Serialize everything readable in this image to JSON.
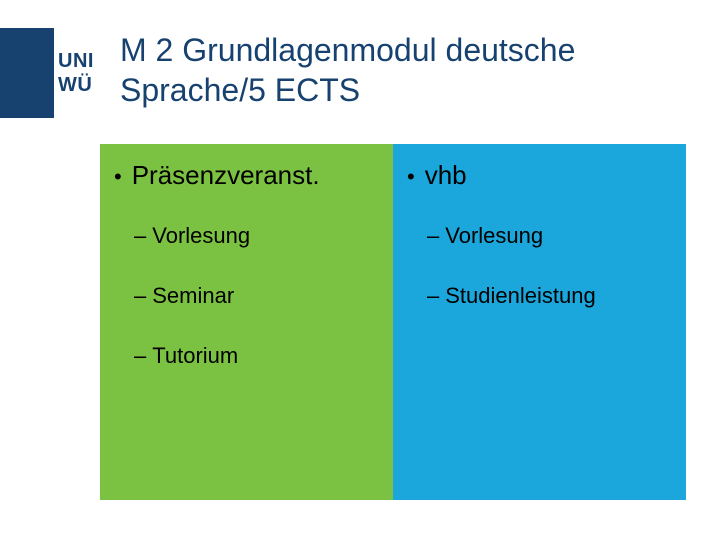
{
  "logo": {
    "line1": "UNI",
    "line2": "WÜ",
    "block_color": "#17426f",
    "text_color": "#17426f"
  },
  "title": {
    "text": "M 2 Grundlagenmodul deutsche Sprache/5 ECTS",
    "color": "#17426f",
    "fontsize": 32
  },
  "panels": {
    "left": {
      "bg_color": "#7cc242",
      "text_color": "#000000",
      "header": "Präsenzveranst.",
      "items": [
        "Vorlesung",
        "Seminar",
        "Tutorium"
      ]
    },
    "right": {
      "bg_color": "#1ba7dc",
      "text_color": "#000000",
      "header": "vhb",
      "items": [
        "Vorlesung",
        "Studienleistung"
      ]
    }
  }
}
